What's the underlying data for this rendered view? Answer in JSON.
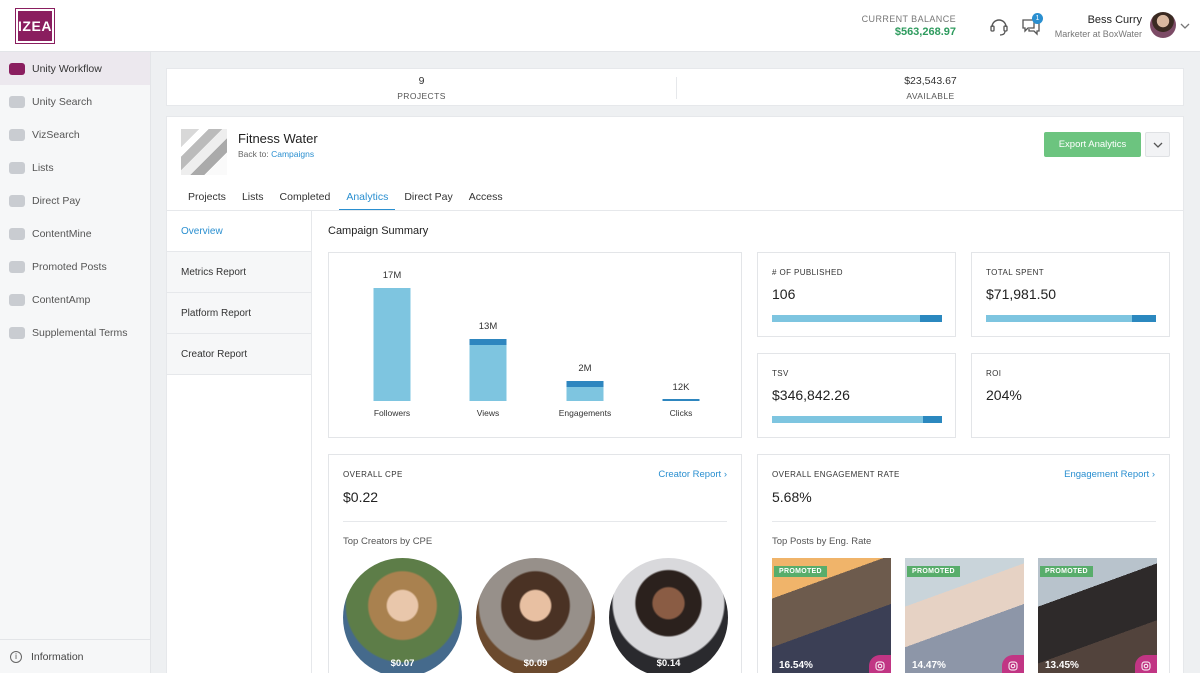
{
  "app": {
    "logo": "IZEA"
  },
  "header": {
    "balance_label": "CURRENT BALANCE",
    "balance_value": "$563,268.97",
    "notifications_count": "1",
    "user_name": "Bess Curry",
    "user_role": "Marketer at BoxWater",
    "icons": [
      "support-icon",
      "chat-icon",
      "chevron-down-icon"
    ]
  },
  "sidebar": {
    "items": [
      {
        "label": "Unity Workflow",
        "icon": "workflow-icon",
        "active": true
      },
      {
        "label": "Unity Search",
        "icon": "search-icon"
      },
      {
        "label": "VizSearch",
        "icon": "vizsearch-icon"
      },
      {
        "label": "Lists",
        "icon": "list-icon"
      },
      {
        "label": "Direct Pay",
        "icon": "direct-pay-icon"
      },
      {
        "label": "ContentMine",
        "icon": "folder-icon"
      },
      {
        "label": "Promoted Posts",
        "icon": "megaphone-icon"
      },
      {
        "label": "ContentAmp",
        "icon": "amp-icon"
      },
      {
        "label": "Supplemental Terms",
        "icon": "document-icon"
      }
    ],
    "info_label": "Information"
  },
  "stats": {
    "projects_value": "9",
    "projects_label": "PROJECTS",
    "available_value": "$23,543.67",
    "available_label": "AVAILABLE"
  },
  "campaign": {
    "title": "Fitness Water",
    "back_prefix": "Back to:",
    "back_link": "Campaigns",
    "export_label": "Export Analytics",
    "tabs": [
      "Projects",
      "Lists",
      "Completed",
      "Analytics",
      "Direct Pay",
      "Access"
    ],
    "active_tab": "Analytics"
  },
  "subnav": {
    "items": [
      "Overview",
      "Metrics Report",
      "Platform Report",
      "Creator Report"
    ],
    "active": "Overview"
  },
  "summary": {
    "title": "Campaign Summary",
    "published_label": "# OF PUBLISHED",
    "published_value": "106",
    "published_fill": 0.87,
    "spent_label": "TOTAL SPENT",
    "spent_value": "$71,981.50",
    "spent_fill": 0.86,
    "tsv_label": "TSV",
    "tsv_value": "$346,842.26",
    "tsv_fill": 0.89,
    "roi_label": "ROI",
    "roi_value": "204%"
  },
  "chart_data": {
    "type": "bar",
    "categories": [
      "Followers",
      "Views",
      "Engagements",
      "Clicks"
    ],
    "values": [
      17000000,
      13000000,
      2000000,
      12000
    ],
    "value_labels": [
      "17M",
      "13M",
      "2M",
      "12K"
    ],
    "colors": {
      "bar": "#7ec5e0",
      "accent": "#2e86bf"
    }
  },
  "cpe": {
    "label": "OVERALL CPE",
    "value": "$0.22",
    "link": "Creator Report",
    "subtitle": "Top Creators by CPE",
    "creators": [
      {
        "cpe": "$0.07"
      },
      {
        "cpe": "$0.09"
      },
      {
        "cpe": "$0.14"
      }
    ]
  },
  "engagement": {
    "label": "OVERALL ENGAGEMENT RATE",
    "value": "5.68%",
    "link": "Engagement Report",
    "subtitle": "Top Posts by Eng. Rate",
    "posts": [
      {
        "badge": "PROMOTED",
        "rate": "16.54%",
        "platform": "instagram-icon"
      },
      {
        "badge": "PROMOTED",
        "rate": "14.47%",
        "platform": "instagram-icon"
      },
      {
        "badge": "PROMOTED",
        "rate": "13.45%",
        "platform": "instagram-icon"
      }
    ]
  }
}
